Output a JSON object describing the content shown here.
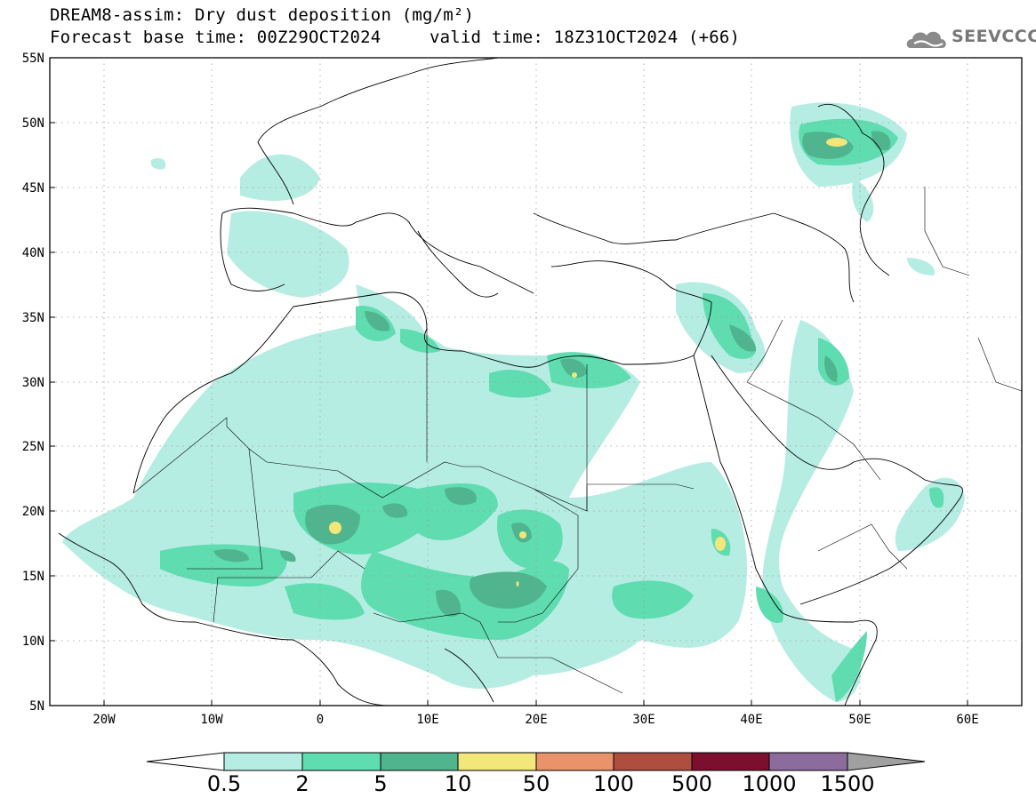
{
  "header": {
    "title": "DREAM8-assim: Dry dust deposition (mg/m²)",
    "base_time": "Forecast base time: 00Z29OCT2024",
    "valid_time": "valid time: 18Z31OCT2024 (+66)"
  },
  "logo": {
    "text": "SEEVCCC",
    "icon": "cloud-logo-icon"
  },
  "axes": {
    "lat_labels": [
      "55N",
      "50N",
      "45N",
      "40N",
      "35N",
      "30N",
      "25N",
      "20N",
      "15N",
      "10N",
      "5N"
    ],
    "lon_labels": [
      "20W",
      "10W",
      "0",
      "10E",
      "20E",
      "30E",
      "40E",
      "50E",
      "60E"
    ]
  },
  "colorbar": {
    "labels": [
      "0.5",
      "2",
      "5",
      "10",
      "50",
      "100",
      "500",
      "1000",
      "1500"
    ],
    "colors": [
      "#ffffff",
      "#b6ede3",
      "#5fdcb0",
      "#50b48e",
      "#f3e67a",
      "#e8936a",
      "#ad4e3f",
      "#7c0f2e",
      "#8c6c9c",
      "#a0a0a0"
    ]
  }
}
